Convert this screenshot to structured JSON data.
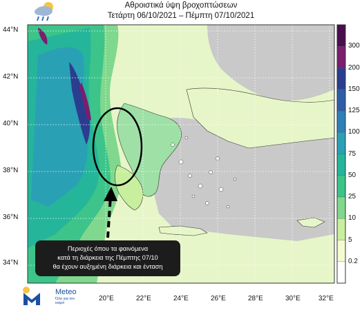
{
  "title": {
    "line1": "Αθροιστικά ύψη βροχοπτώσεων",
    "line2": "Τετάρτη 06/10/2021 – Πέμπτη 07/10/2021"
  },
  "latitude_labels": [
    "44°N",
    "42°N",
    "40°N",
    "38°N",
    "36°N",
    "34°N"
  ],
  "longitude_labels": [
    "20°E",
    "22°E",
    "24°E",
    "26°E",
    "28°E",
    "30°E",
    "32°E"
  ],
  "colorbar": {
    "labels": [
      "300",
      "200",
      "150",
      "125",
      "100",
      "75",
      "50",
      "25",
      "10",
      "5",
      "0.2"
    ],
    "colors": [
      "#4a0d4f",
      "#7a1e6e",
      "#2b3d8f",
      "#2e5ea8",
      "#2f7fb8",
      "#2aa0b5",
      "#25b59a",
      "#3cc48a",
      "#7fd88d",
      "#c8ef9e",
      "#f5fbd0",
      "#ffffff"
    ]
  },
  "annotation": {
    "line1": "Περιοχές όπου τα φαινόμενα",
    "line2": "κατά τη διάρκεια της Πέμπτης 07/10",
    "line3": "θα έχουν αυξημένη διάρκεια και ένταση"
  },
  "logo": {
    "brand": "Meteo",
    "tagline": "Όλα για τον καιρό"
  },
  "icons": {
    "weather": "cloud-sun-rain-icon",
    "logo": "meteo-m-logo"
  }
}
